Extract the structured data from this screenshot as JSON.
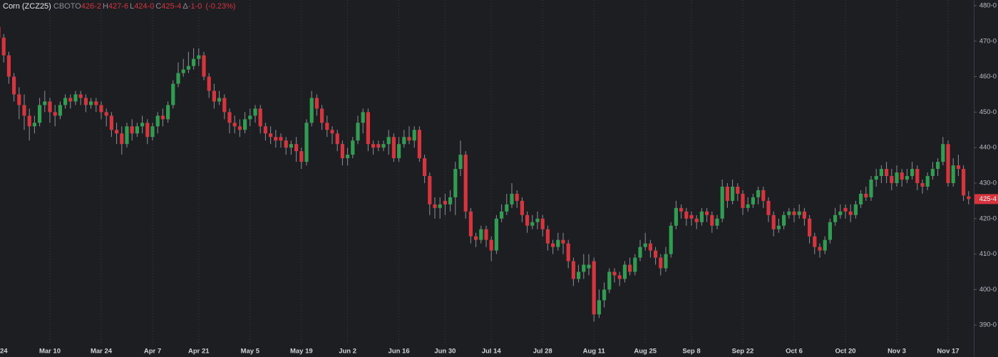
{
  "chart_data": {
    "type": "candlestick",
    "title": "Corn (ZCZ25)",
    "exchange": "CBOT",
    "quote": [
      {
        "key": "O",
        "value": "426-2"
      },
      {
        "key": "H",
        "value": "427-6"
      },
      {
        "key": "L",
        "value": "424-0"
      },
      {
        "key": "C",
        "value": "425-4"
      },
      {
        "key": "Δ",
        "value": "-1-0"
      }
    ],
    "change_pct": "(-0.23%)",
    "categories": [
      "24",
      null,
      null,
      null,
      null,
      null,
      null,
      null,
      null,
      null,
      "Mar 10",
      null,
      null,
      null,
      null,
      null,
      null,
      null,
      null,
      null,
      "Mar 24",
      null,
      null,
      null,
      null,
      null,
      null,
      null,
      null,
      null,
      "Apr 7",
      null,
      null,
      null,
      null,
      null,
      null,
      null,
      null,
      "Apr 21",
      null,
      null,
      null,
      null,
      null,
      null,
      null,
      null,
      null,
      "May 5",
      null,
      null,
      null,
      null,
      null,
      null,
      null,
      null,
      null,
      "May 19",
      null,
      null,
      null,
      null,
      null,
      null,
      null,
      null,
      "Jun 2",
      null,
      null,
      null,
      null,
      null,
      null,
      null,
      null,
      null,
      "Jun 16",
      null,
      null,
      null,
      null,
      null,
      null,
      null,
      null,
      "Jun 30",
      null,
      null,
      null,
      null,
      null,
      null,
      null,
      null,
      "Jul 14",
      null,
      null,
      null,
      null,
      null,
      null,
      null,
      null,
      null,
      "Jul 28",
      null,
      null,
      null,
      null,
      null,
      null,
      null,
      null,
      null,
      "Aug 11",
      null,
      null,
      null,
      null,
      null,
      null,
      null,
      null,
      null,
      "Aug 25",
      null,
      null,
      null,
      null,
      null,
      null,
      null,
      null,
      "Sep 8",
      null,
      null,
      null,
      null,
      null,
      null,
      null,
      null,
      null,
      "Sep 22",
      null,
      null,
      null,
      null,
      null,
      null,
      null,
      null,
      null,
      "Oct 6",
      null,
      null,
      null,
      null,
      null,
      null,
      null,
      null,
      null,
      "Oct 20",
      null,
      null,
      null,
      null,
      null,
      null,
      null,
      null,
      null,
      "Nov 3",
      null,
      null,
      null,
      null,
      null,
      null,
      null,
      null,
      null,
      "Nov 17",
      null,
      null,
      null,
      null
    ],
    "open": [
      474,
      471,
      466,
      460,
      455,
      452,
      449,
      446,
      447,
      452,
      453,
      450,
      449,
      452,
      454,
      453,
      455,
      454,
      452,
      453,
      452,
      450,
      449,
      445,
      444,
      441,
      446,
      444,
      446,
      447,
      443,
      446,
      449,
      448,
      452,
      458,
      461,
      462,
      463,
      465,
      466,
      460,
      456,
      453,
      454,
      450,
      447,
      446,
      445,
      448,
      449,
      451,
      446,
      444,
      443,
      443,
      442,
      440,
      441,
      439,
      436,
      447,
      454,
      451,
      447,
      445,
      444,
      441,
      437,
      438,
      442,
      447,
      450,
      441,
      441,
      440,
      441,
      443,
      437,
      441,
      443,
      442,
      445,
      437,
      432,
      424,
      423,
      425,
      424,
      426,
      434,
      438,
      422,
      415,
      414,
      417,
      414,
      411,
      420,
      422,
      424,
      427,
      425,
      421,
      418,
      419,
      420,
      417,
      413,
      412,
      414,
      413,
      408,
      403,
      405,
      406,
      408,
      393,
      397,
      400,
      405,
      404,
      403,
      407,
      405,
      409,
      412,
      413,
      411,
      409,
      406,
      410,
      418,
      423,
      422,
      421,
      420,
      419,
      422,
      421,
      418,
      420,
      429,
      425,
      429,
      427,
      423,
      424,
      426,
      428,
      425,
      421,
      417,
      418,
      421,
      422,
      421,
      422,
      420,
      415,
      412,
      411,
      414,
      419,
      421,
      423,
      422,
      421,
      424,
      427,
      426,
      431,
      432,
      434,
      432,
      430,
      433,
      431,
      432,
      434,
      430,
      429,
      432,
      434,
      436,
      441,
      430,
      435,
      434,
      426.25
    ],
    "high": [
      476,
      472,
      467,
      461,
      457,
      455,
      451,
      449,
      454,
      456,
      454,
      452,
      453,
      455,
      455,
      456,
      456,
      455,
      454,
      454,
      453,
      451,
      450,
      447,
      446,
      447,
      448,
      447,
      449,
      448,
      447,
      450,
      451,
      453,
      459,
      464,
      465,
      467,
      468,
      468,
      467,
      461,
      458,
      456,
      455,
      451,
      449,
      448,
      450,
      451,
      452,
      452,
      447,
      446,
      445,
      444,
      443,
      442,
      443,
      440,
      448,
      456,
      455,
      452,
      449,
      446,
      445,
      442,
      440,
      443,
      449,
      451,
      451,
      442,
      442,
      442,
      445,
      444,
      443,
      445,
      446,
      446,
      446,
      438,
      433,
      426,
      426,
      427,
      428,
      436,
      442,
      439,
      423,
      416,
      418,
      418,
      415,
      421,
      424,
      427,
      430,
      428,
      426,
      422,
      421,
      422,
      421,
      418,
      414,
      416,
      416,
      414,
      409,
      407,
      410,
      410,
      409,
      400,
      402,
      406,
      406,
      405,
      408,
      409,
      410,
      414,
      416,
      414,
      412,
      410,
      412,
      419,
      425,
      424,
      423,
      422,
      421,
      423,
      423,
      422,
      421,
      431,
      430,
      431,
      430,
      428,
      426,
      427,
      429,
      429,
      426,
      422,
      420,
      422,
      423,
      423,
      424,
      423,
      421,
      416,
      413,
      415,
      420,
      423,
      424,
      424,
      424,
      425,
      428,
      429,
      432,
      434,
      435,
      436,
      434,
      435,
      434,
      434,
      436,
      435,
      431,
      433,
      436,
      437,
      443,
      442,
      437,
      438,
      435,
      427.75
    ],
    "low": [
      469,
      464,
      458,
      453,
      448,
      445,
      442,
      444,
      446,
      450,
      447,
      446,
      448,
      451,
      451,
      452,
      452,
      450,
      451,
      450,
      448,
      446,
      443,
      441,
      438,
      440,
      442,
      443,
      444,
      441,
      442,
      444,
      446,
      447,
      451,
      457,
      460,
      461,
      462,
      463,
      459,
      454,
      451,
      452,
      448,
      444,
      444,
      443,
      444,
      446,
      447,
      444,
      442,
      441,
      440,
      440,
      438,
      438,
      436,
      434,
      435,
      446,
      449,
      445,
      443,
      441,
      439,
      435,
      435,
      437,
      441,
      444,
      439,
      438,
      439,
      439,
      438,
      436,
      436,
      440,
      441,
      440,
      436,
      430,
      421,
      420,
      420,
      421,
      422,
      421,
      432,
      420,
      413,
      412,
      413,
      412,
      408,
      410,
      419,
      421,
      423,
      423,
      419,
      416,
      417,
      417,
      415,
      411,
      410,
      411,
      410,
      406,
      401,
      402,
      403,
      404,
      391,
      392,
      395,
      399,
      402,
      401,
      402,
      404,
      404,
      408,
      411,
      409,
      407,
      404,
      405,
      409,
      417,
      420,
      418,
      418,
      417,
      418,
      419,
      416,
      417,
      419,
      423,
      424,
      425,
      421,
      422,
      423,
      424,
      423,
      419,
      415,
      416,
      417,
      420,
      419,
      420,
      418,
      413,
      410,
      409,
      410,
      413,
      418,
      420,
      420,
      419,
      420,
      423,
      425,
      425,
      429,
      430,
      430,
      428,
      429,
      429,
      430,
      431,
      428,
      427,
      428,
      431,
      432,
      435,
      429,
      429,
      432,
      425,
      424
    ],
    "close": [
      471,
      466,
      460,
      455,
      452,
      449,
      446,
      447,
      452,
      453,
      450,
      449,
      452,
      454,
      453,
      455,
      454,
      452,
      453,
      452,
      450,
      449,
      445,
      444,
      441,
      446,
      444,
      446,
      447,
      443,
      446,
      449,
      448,
      452,
      458,
      461,
      462,
      463,
      465,
      466,
      460,
      456,
      453,
      454,
      450,
      447,
      446,
      445,
      448,
      449,
      451,
      446,
      444,
      443,
      442,
      442,
      440,
      441,
      439,
      436,
      447,
      454,
      451,
      447,
      445,
      444,
      441,
      437,
      438,
      442,
      447,
      450,
      441,
      440,
      440,
      441,
      443,
      437,
      441,
      443,
      442,
      445,
      437,
      432,
      424,
      423,
      424,
      424,
      426,
      434,
      438,
      422,
      415,
      414,
      417,
      414,
      411,
      420,
      422,
      424,
      427,
      425,
      421,
      418,
      419,
      420,
      417,
      413,
      412,
      414,
      413,
      408,
      403,
      405,
      407,
      407,
      393,
      397,
      400,
      405,
      404,
      403,
      407,
      405,
      409,
      412,
      413,
      411,
      409,
      406,
      410,
      418,
      423,
      422,
      420,
      420,
      419,
      422,
      421,
      418,
      420,
      429,
      425,
      429,
      427,
      423,
      424,
      426,
      428,
      425,
      421,
      417,
      418,
      421,
      422,
      421,
      422,
      420,
      415,
      412,
      411,
      414,
      419,
      421,
      422,
      422,
      421,
      424,
      427,
      426,
      431,
      432,
      434,
      432,
      430,
      433,
      431,
      432,
      434,
      430,
      429,
      432,
      434,
      436,
      441,
      430,
      435,
      434,
      426.5,
      425.5
    ],
    "up_color": "#2f9e50",
    "down_color": "#d7343d",
    "ylim": [
      381,
      481.6
    ],
    "yticks": [
      {
        "value": 390,
        "label": "390-0"
      },
      {
        "value": 400,
        "label": "400-0"
      },
      {
        "value": 410,
        "label": "410-0"
      },
      {
        "value": 420,
        "label": "420-0"
      },
      {
        "value": 430,
        "label": "430-0"
      },
      {
        "value": 440,
        "label": "440-0"
      },
      {
        "value": 450,
        "label": "450-0"
      },
      {
        "value": 460,
        "label": "460-0"
      },
      {
        "value": 470,
        "label": "470-0"
      },
      {
        "value": 480,
        "label": "480-0"
      }
    ],
    "grid": true
  }
}
